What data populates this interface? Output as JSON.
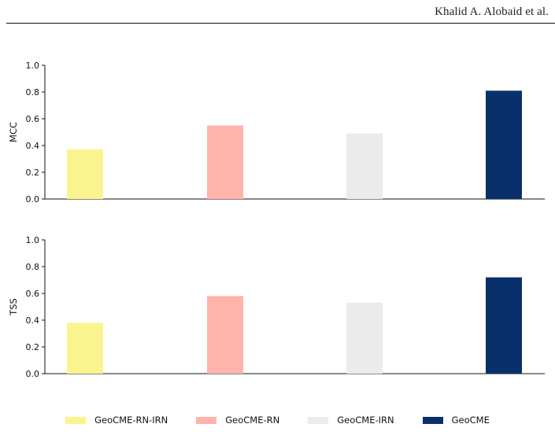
{
  "header": {
    "author": "Khalid A. Alobaid et al."
  },
  "colors": {
    "GeoCME-RN-IRN": "#fbf38e",
    "GeoCME-RN": "#ffb3ab",
    "GeoCME-IRN": "#ebebeb",
    "GeoCME": "#0a306b"
  },
  "chart_data": [
    {
      "type": "bar",
      "ylabel": "MCC",
      "ylim": [
        0,
        1.0
      ],
      "yticks": [
        "0.0",
        "0.2",
        "0.4",
        "0.6",
        "0.8",
        "1.0"
      ],
      "categories": [
        "GeoCME-RN-IRN",
        "GeoCME-RN",
        "GeoCME-IRN",
        "GeoCME"
      ],
      "values": [
        0.37,
        0.55,
        0.49,
        0.81
      ]
    },
    {
      "type": "bar",
      "ylabel": "TSS",
      "ylim": [
        0,
        1.0
      ],
      "yticks": [
        "0.0",
        "0.2",
        "0.4",
        "0.6",
        "0.8",
        "1.0"
      ],
      "categories": [
        "GeoCME-RN-IRN",
        "GeoCME-RN",
        "GeoCME-IRN",
        "GeoCME"
      ],
      "values": [
        0.38,
        0.58,
        0.53,
        0.72
      ]
    }
  ],
  "legend": {
    "position": "bottom-center",
    "items": [
      "GeoCME-RN-IRN",
      "GeoCME-RN",
      "GeoCME-IRN",
      "GeoCME"
    ]
  }
}
